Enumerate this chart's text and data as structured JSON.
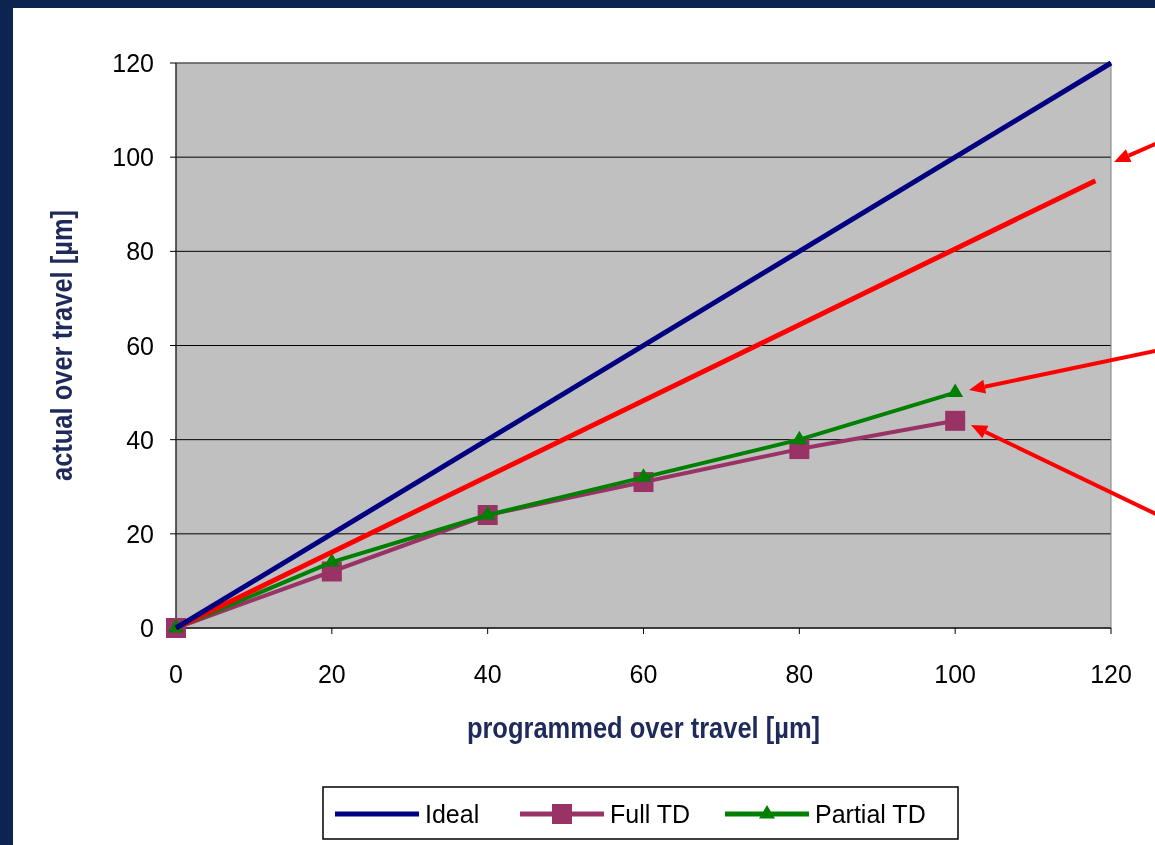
{
  "chart_data": {
    "type": "line",
    "xlabel": "programmed over travel [µm]",
    "ylabel": "actual over travel [µm]",
    "xlim": [
      0,
      120
    ],
    "ylim": [
      0,
      120
    ],
    "xticks": [
      0,
      20,
      40,
      60,
      80,
      100,
      120
    ],
    "yticks": [
      0,
      20,
      40,
      60,
      80,
      100,
      120
    ],
    "grid": "y",
    "legend": "bottom",
    "series": [
      {
        "name": "Ideal",
        "color": "#000080",
        "x": [
          0,
          120
        ],
        "values": [
          0,
          120
        ],
        "marker": "none"
      },
      {
        "name": "Full TD",
        "color": "#993366",
        "x": [
          0,
          20,
          40,
          60,
          80,
          100
        ],
        "values": [
          0,
          12,
          24,
          31,
          38,
          44
        ],
        "marker": "square"
      },
      {
        "name": "Partial TD",
        "color": "#008000",
        "x": [
          0,
          20,
          40,
          60,
          80,
          100
        ],
        "values": [
          0,
          14,
          24,
          32,
          40,
          50
        ],
        "marker": "triangle"
      },
      {
        "color": "#ff0000",
        "x": [
          0,
          118
        ],
        "values": [
          0,
          95
        ],
        "marker": "none"
      }
    ]
  }
}
